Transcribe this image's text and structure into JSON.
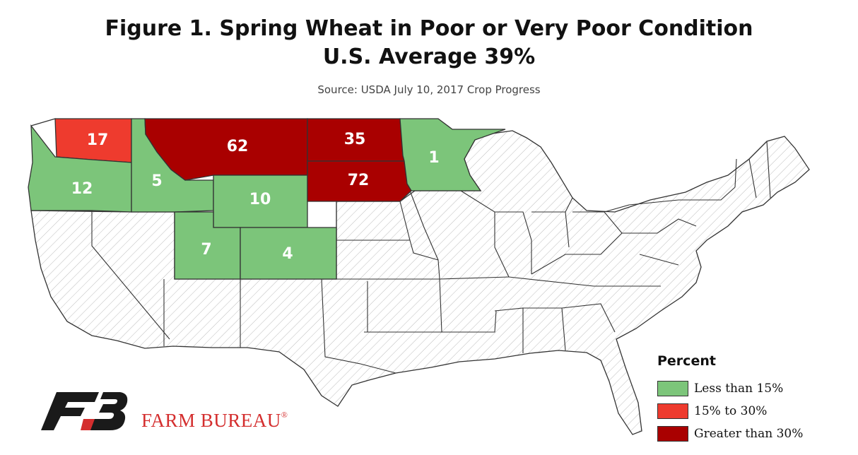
{
  "title": {
    "line1": "Figure 1. Spring Wheat in Poor or Very Poor Condition",
    "line2": "U.S. Average 39%"
  },
  "source": "Source: USDA July 10, 2017 Crop Progress",
  "colors": {
    "low": "#7cc57a",
    "mid": "#ee3b2e",
    "high": "#a90000",
    "none_fill": "#ffffff",
    "hatch": "#bdbdbd"
  },
  "states": {
    "WA": "17",
    "OR": "12",
    "ID": "5",
    "MT": "62",
    "WY": "10",
    "UT": "7",
    "CO": "4",
    "ND": "35",
    "SD": "72",
    "MN": "1"
  },
  "legend": {
    "title": "Percent",
    "items": [
      {
        "label": "Less than 15%",
        "color": "#7cc57a"
      },
      {
        "label": "15% to 30%",
        "color": "#ee3b2e"
      },
      {
        "label": "Greater than 30%",
        "color": "#a90000"
      }
    ]
  },
  "brand": {
    "name": "FARM BUREAU",
    "mark": "®"
  }
}
